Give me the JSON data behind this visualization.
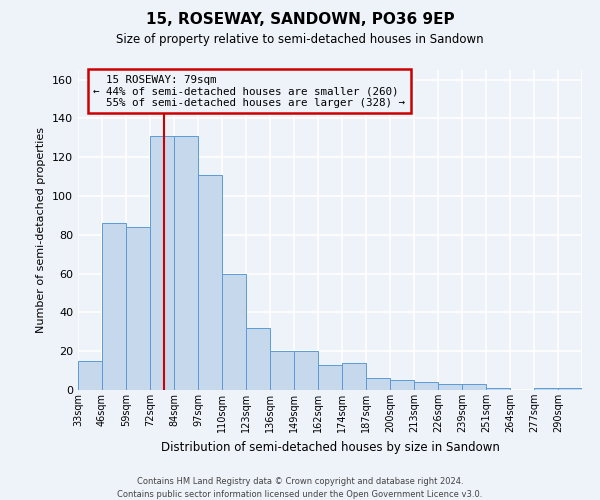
{
  "title": "15, ROSEWAY, SANDOWN, PO36 9EP",
  "subtitle": "Size of property relative to semi-detached houses in Sandown",
  "xlabel": "Distribution of semi-detached houses by size in Sandown",
  "ylabel": "Number of semi-detached properties",
  "bin_labels": [
    "33sqm",
    "46sqm",
    "59sqm",
    "72sqm",
    "84sqm",
    "97sqm",
    "110sqm",
    "123sqm",
    "136sqm",
    "149sqm",
    "162sqm",
    "174sqm",
    "187sqm",
    "200sqm",
    "213sqm",
    "226sqm",
    "239sqm",
    "251sqm",
    "264sqm",
    "277sqm",
    "290sqm"
  ],
  "counts": [
    15,
    86,
    84,
    131,
    131,
    111,
    60,
    32,
    20,
    20,
    13,
    14,
    6,
    5,
    4,
    3,
    3,
    1,
    0,
    1,
    1
  ],
  "bar_color": "#c5d8ec",
  "bar_edgecolor": "#5b9bd5",
  "property_size": 79,
  "property_label": "15 ROSEWAY: 79sqm",
  "pct_smaller": 44,
  "count_smaller": 260,
  "pct_larger": 55,
  "count_larger": 328,
  "annotation_box_edgecolor": "#cc0000",
  "vline_color": "#cc0000",
  "ylim": [
    0,
    165
  ],
  "yticks": [
    0,
    20,
    40,
    60,
    80,
    100,
    120,
    140,
    160
  ],
  "bg_color": "#eef2f9",
  "grid_color": "#ffffff",
  "footer_line1": "Contains HM Land Registry data © Crown copyright and database right 2024.",
  "footer_line2": "Contains public sector information licensed under the Open Government Licence v3.0."
}
